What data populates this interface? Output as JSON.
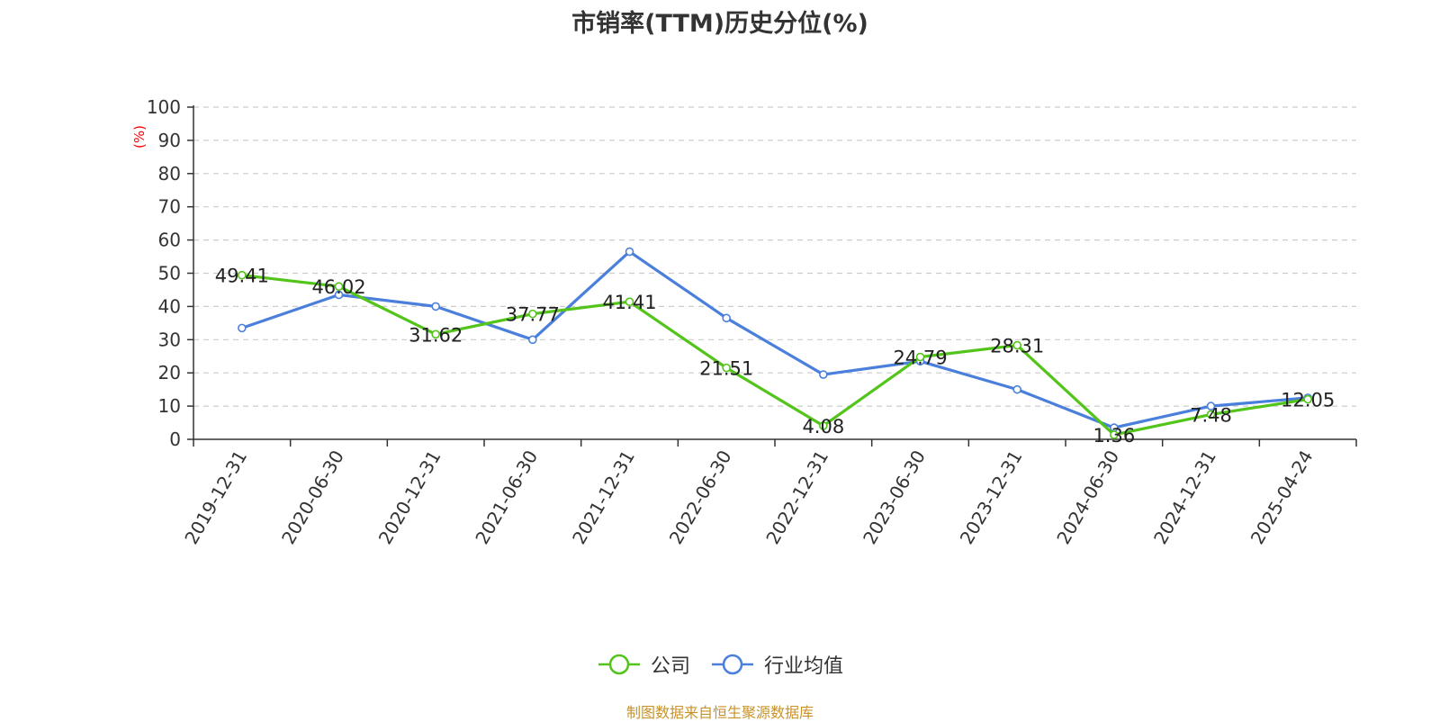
{
  "chart_data": {
    "type": "line",
    "title": "市销率(TTM)历史分位(%)",
    "ylabel": "(%)",
    "ylim": [
      0,
      100
    ],
    "yticks": [
      0,
      10,
      20,
      30,
      40,
      50,
      60,
      70,
      80,
      90,
      100
    ],
    "grid": true,
    "legend_position": "bottom-center",
    "categories": [
      "2019-12-31",
      "2020-06-30",
      "2020-12-31",
      "2021-06-30",
      "2021-12-31",
      "2022-06-30",
      "2022-12-31",
      "2023-06-30",
      "2023-12-31",
      "2024-06-30",
      "2024-12-31",
      "2025-04-24"
    ],
    "series": [
      {
        "name": "公司",
        "color": "#52c41a",
        "show_labels": true,
        "values": [
          49.41,
          46.02,
          31.62,
          37.77,
          41.41,
          21.51,
          4.08,
          24.79,
          28.31,
          1.36,
          7.48,
          12.05
        ]
      },
      {
        "name": "行业均值",
        "color": "#4a7fdc",
        "show_labels": false,
        "values": [
          33.5,
          43.5,
          40.0,
          30.0,
          56.5,
          36.5,
          19.5,
          23.5,
          15.0,
          3.5,
          10.0,
          12.5
        ]
      }
    ]
  },
  "footer": {
    "source": "制图数据来自恒生聚源数据库"
  }
}
